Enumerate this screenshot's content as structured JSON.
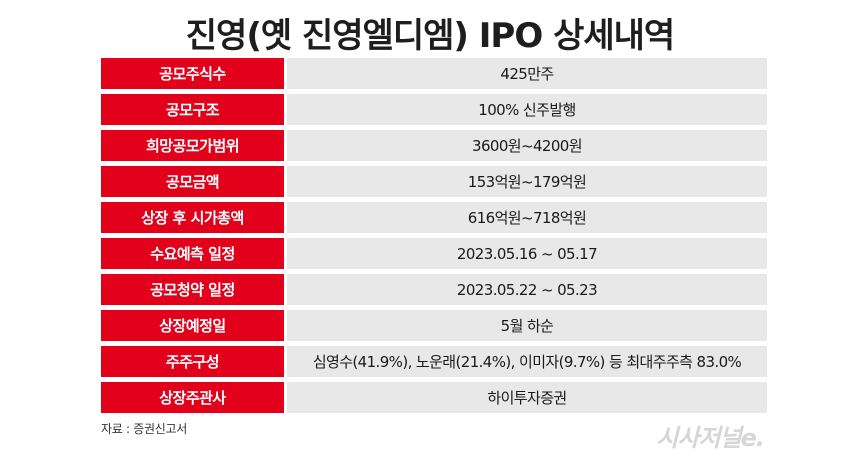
{
  "title": "진영(옛 진영엘디엠) IPO 상세내역",
  "rows": [
    {
      "label": "공모주식수",
      "value": "425만주"
    },
    {
      "label": "공모구조",
      "value": "100% 신주발행"
    },
    {
      "label": "희망공모가범위",
      "value": "3600원~4200원"
    },
    {
      "label": "공모금액",
      "value": "153억원~179억원"
    },
    {
      "label": "상장 후 시가총액",
      "value": "616억원~718억원"
    },
    {
      "label": "수요예측 일정",
      "value": "2023.05.16 ~ 05.17"
    },
    {
      "label": "공모청약 일정",
      "value": "2023.05.22 ~ 05.23"
    },
    {
      "label": "상장예정일",
      "value": "5월 하순"
    },
    {
      "label": "주주구성",
      "value": "심영수(41.9%), 노운래(21.4%), 이미자(9.7%) 등 최대주주측 83.0%"
    },
    {
      "label": "상장주관사",
      "value": "하이투자증권"
    }
  ],
  "source": "자료 : 증권신고서",
  "brand": "시사저널e.",
  "colors": {
    "label_bg": "#e3001b",
    "value_bg": "#e8e8e8"
  }
}
